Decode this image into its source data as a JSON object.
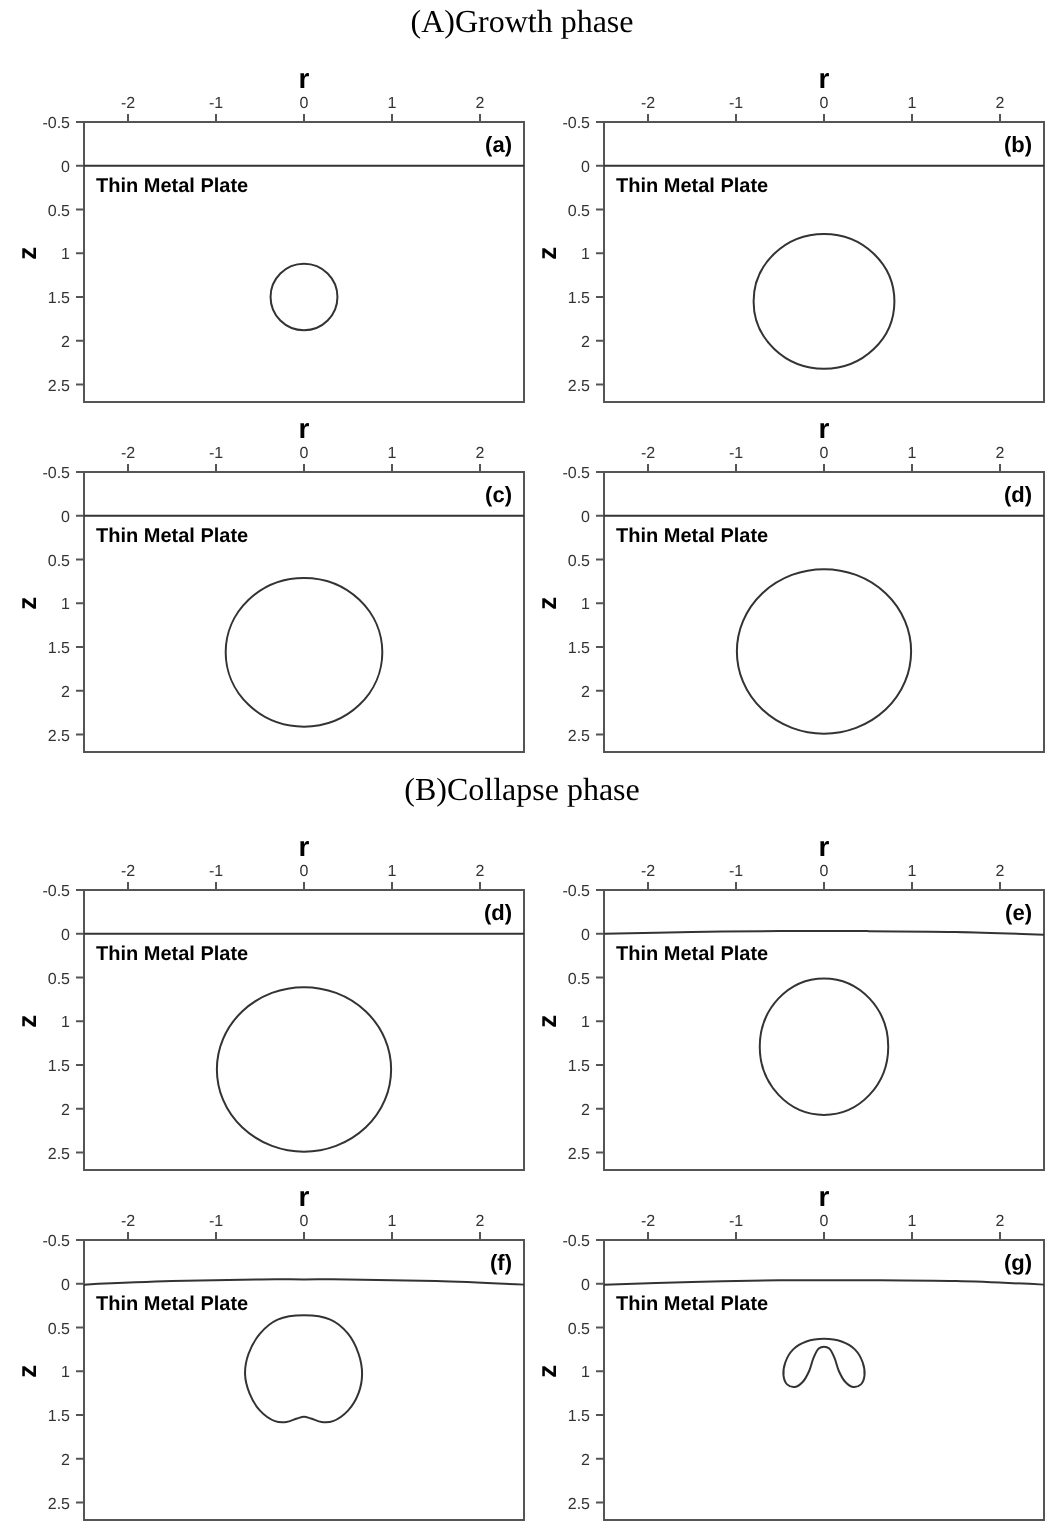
{
  "chart_data": [
    {
      "type": "line",
      "title": "(A)Growth phase",
      "xlabel": "r",
      "ylabel": "z",
      "xlim": [
        -2.5,
        2.5
      ],
      "ylim": [
        2.7,
        -0.5
      ],
      "xticks": [
        -2,
        -1,
        0,
        1,
        2
      ],
      "yticks": [
        -0.5,
        0,
        0.5,
        1,
        1.5,
        2,
        2.5
      ],
      "annotations": [
        "(a)",
        "Thin Metal Plate"
      ],
      "series": [
        {
          "color": "#333333",
          "x": [
            -2.5,
            2.5
          ],
          "values": [
            0,
            0
          ]
        }
      ]
    },
    {
      "type": "line",
      "xlabel": "r",
      "ylabel": "z",
      "xlim": [
        -2.5,
        2.5
      ],
      "ylim": [
        2.7,
        -0.5
      ],
      "xticks": [
        -2,
        -1,
        0,
        1,
        2
      ],
      "yticks": [
        -0.5,
        0,
        0.5,
        1,
        1.5,
        2,
        2.5
      ],
      "annotations": [
        "(b)",
        "Thin Metal Plate"
      ],
      "series": [
        {
          "color": "#333333",
          "x": [
            -2.5,
            2.5
          ],
          "values": [
            0,
            0
          ]
        }
      ]
    },
    {
      "type": "line",
      "xlabel": "r",
      "ylabel": "z",
      "xlim": [
        -2.5,
        2.5
      ],
      "ylim": [
        2.7,
        -0.5
      ],
      "xticks": [
        -2,
        -1,
        0,
        1,
        2
      ],
      "yticks": [
        -0.5,
        0,
        0.5,
        1,
        1.5,
        2,
        2.5
      ],
      "annotations": [
        "(c)",
        "Thin Metal Plate"
      ],
      "series": [
        {
          "color": "#333333",
          "x": [
            -2.5,
            2.5
          ],
          "values": [
            0,
            0
          ]
        }
      ]
    },
    {
      "type": "line",
      "xlabel": "r",
      "ylabel": "z",
      "xlim": [
        -2.5,
        2.5
      ],
      "ylim": [
        2.7,
        -0.5
      ],
      "xticks": [
        -2,
        -1,
        0,
        1,
        2
      ],
      "yticks": [
        -0.5,
        0,
        0.5,
        1,
        1.5,
        2,
        2.5
      ],
      "annotations": [
        "(d)",
        "Thin Metal Plate"
      ],
      "series": [
        {
          "color": "#333333",
          "x": [
            -2.5,
            2.5
          ],
          "values": [
            0,
            0
          ]
        }
      ]
    },
    {
      "type": "line",
      "title": "(B)Collapse phase",
      "xlabel": "r",
      "ylabel": "z",
      "xlim": [
        -2.5,
        2.5
      ],
      "ylim": [
        2.7,
        -0.5
      ],
      "xticks": [
        -2,
        -1,
        0,
        1,
        2
      ],
      "yticks": [
        -0.5,
        0,
        0.5,
        1,
        1.5,
        2,
        2.5
      ],
      "annotations": [
        "(d)",
        "Thin Metal Plate"
      ],
      "series": [
        {
          "color": "#333333",
          "x": [
            -2.5,
            2.5
          ],
          "values": [
            0,
            0
          ]
        }
      ]
    },
    {
      "type": "line",
      "xlabel": "r",
      "ylabel": "z",
      "xlim": [
        -2.5,
        2.5
      ],
      "ylim": [
        2.7,
        -0.5
      ],
      "xticks": [
        -2,
        -1,
        0,
        1,
        2
      ],
      "yticks": [
        -0.5,
        0,
        0.5,
        1,
        1.5,
        2,
        2.5
      ],
      "annotations": [
        "(e)",
        "Thin Metal Plate"
      ],
      "series": [
        {
          "color": "#333333",
          "x": [
            -2.5,
            -1.5,
            -0.5,
            0,
            0.5,
            1.5,
            2.5
          ],
          "values": [
            0,
            -0.02,
            -0.03,
            -0.03,
            -0.03,
            -0.02,
            0.01
          ]
        }
      ]
    },
    {
      "type": "line",
      "xlabel": "r",
      "ylabel": "z",
      "xlim": [
        -2.5,
        2.5
      ],
      "ylim": [
        2.7,
        -0.5
      ],
      "xticks": [
        -2,
        -1,
        0,
        1,
        2
      ],
      "yticks": [
        -0.5,
        0,
        0.5,
        1,
        1.5,
        2,
        2.5
      ],
      "annotations": [
        "(f)",
        "Thin Metal Plate"
      ],
      "series": [
        {
          "color": "#333333",
          "x": [
            -2.5,
            -1.5,
            -0.5,
            0,
            0.5,
            1.5,
            2.5
          ],
          "values": [
            0.01,
            -0.03,
            -0.05,
            -0.05,
            -0.05,
            -0.03,
            0.01
          ]
        }
      ]
    },
    {
      "type": "line",
      "xlabel": "r",
      "ylabel": "z",
      "xlim": [
        -2.5,
        2.5
      ],
      "ylim": [
        2.7,
        -0.5
      ],
      "xticks": [
        -2,
        -1,
        0,
        1,
        2
      ],
      "yticks": [
        -0.5,
        0,
        0.5,
        1,
        1.5,
        2,
        2.5
      ],
      "annotations": [
        "(g)",
        "Thin Metal Plate"
      ],
      "series": [
        {
          "color": "#333333",
          "x": [
            -2.5,
            -1.5,
            -0.5,
            0,
            0.5,
            1.5,
            2.5
          ],
          "values": [
            0.01,
            -0.02,
            -0.04,
            -0.04,
            -0.04,
            -0.03,
            0.01
          ]
        }
      ]
    }
  ]
}
